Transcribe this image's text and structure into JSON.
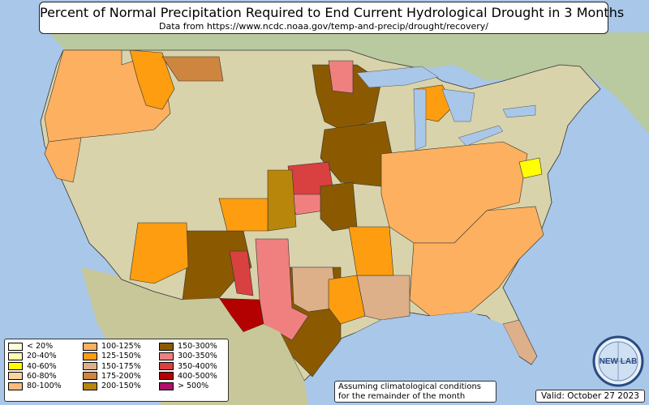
{
  "title": "Percent of Normal Precipitation Required to End Current Hydrological Drought in 3 Months",
  "subtitle": "Data from https://www.ncdc.noaa.gov/temp-and-precip/drought/recovery/",
  "legend": [
    {
      "label": "< 20%",
      "color": "#ffffd9"
    },
    {
      "label": "20-40%",
      "color": "#ffffb3"
    },
    {
      "label": "40-60%",
      "color": "#ffff00"
    },
    {
      "label": "60-80%",
      "color": "#fdd49e"
    },
    {
      "label": "80-100%",
      "color": "#fdbb7a"
    },
    {
      "label": "100-125%",
      "color": "#fdb05f"
    },
    {
      "label": "125-150%",
      "color": "#fd9d0f"
    },
    {
      "label": "150-175%",
      "color": "#ddb08a"
    },
    {
      "label": "175-200%",
      "color": "#cd853f"
    },
    {
      "label": "200-150%",
      "color": "#b8860b"
    },
    {
      "label": "150-300%",
      "color": "#8b5a00"
    },
    {
      "label": "300-350%",
      "color": "#f08080"
    },
    {
      "label": "350-400%",
      "color": "#d94040"
    },
    {
      "label": "400-500%",
      "color": "#b30000"
    },
    {
      "label": "> 500%",
      "color": "#b0106a"
    }
  ],
  "note": {
    "line1": "Assuming climatological conditions",
    "line2": "for the remainder of the month"
  },
  "valid": "Valid: October 27 2023",
  "logo_text": "NEW LAB"
}
